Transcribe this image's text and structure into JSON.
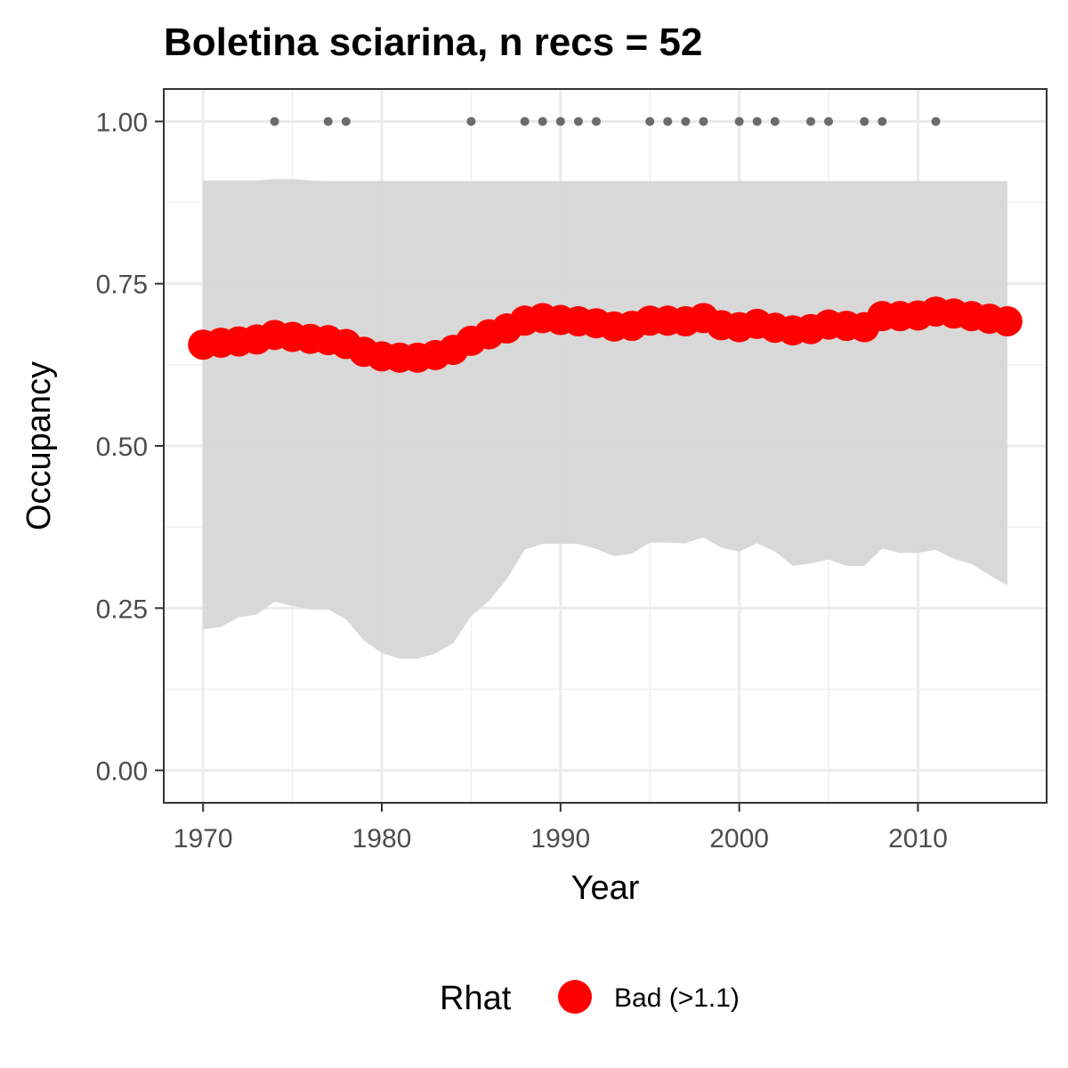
{
  "chart_data": {
    "type": "line",
    "title": "Boletina sciarina, n recs = 52",
    "xlabel": "Year",
    "ylabel": "Occupancy",
    "xlim": [
      1967.8,
      2017.2
    ],
    "ylim": [
      -0.05,
      1.05
    ],
    "x_ticks": [
      1970,
      1980,
      1990,
      2000,
      2010
    ],
    "y_ticks": [
      0.0,
      0.25,
      0.5,
      0.75,
      1.0
    ],
    "y_tick_labels": [
      "0.00",
      "0.25",
      "0.50",
      "0.75",
      "1.00"
    ],
    "grid": true,
    "legend": {
      "title": "Rhat",
      "position": "bottom",
      "entries": [
        {
          "label": "Bad (>1.1)",
          "color": "#ff0000"
        }
      ]
    },
    "colors": {
      "mean": "#ff0000",
      "ribbon": "#d6d6d6",
      "records": "#6b6b6b"
    },
    "x": [
      1970,
      1971,
      1972,
      1973,
      1974,
      1975,
      1976,
      1977,
      1978,
      1979,
      1980,
      1981,
      1982,
      1983,
      1984,
      1985,
      1986,
      1987,
      1988,
      1989,
      1990,
      1991,
      1992,
      1993,
      1994,
      1995,
      1996,
      1997,
      1998,
      1999,
      2000,
      2001,
      2002,
      2003,
      2004,
      2005,
      2006,
      2007,
      2008,
      2009,
      2010,
      2011,
      2012,
      2013,
      2014,
      2015
    ],
    "series": [
      {
        "name": "Bad (>1.1)",
        "values": [
          0.656,
          0.659,
          0.661,
          0.664,
          0.671,
          0.668,
          0.665,
          0.663,
          0.657,
          0.645,
          0.638,
          0.636,
          0.636,
          0.64,
          0.648,
          0.662,
          0.672,
          0.681,
          0.693,
          0.697,
          0.694,
          0.692,
          0.689,
          0.684,
          0.685,
          0.693,
          0.693,
          0.692,
          0.697,
          0.686,
          0.683,
          0.688,
          0.682,
          0.678,
          0.68,
          0.687,
          0.685,
          0.683,
          0.7,
          0.7,
          0.701,
          0.707,
          0.704,
          0.7,
          0.696,
          0.692
        ]
      }
    ],
    "ribbon_upper": [
      0.909,
      0.909,
      0.909,
      0.909,
      0.911,
      0.911,
      0.909,
      0.908,
      0.908,
      0.908,
      0.908,
      0.908,
      0.908,
      0.908,
      0.908,
      0.908,
      0.908,
      0.908,
      0.908,
      0.908,
      0.908,
      0.908,
      0.908,
      0.908,
      0.908,
      0.908,
      0.908,
      0.908,
      0.908,
      0.908,
      0.908,
      0.908,
      0.908,
      0.908,
      0.908,
      0.908,
      0.908,
      0.908,
      0.908,
      0.908,
      0.908,
      0.908,
      0.908,
      0.908,
      0.908,
      0.908
    ],
    "ribbon_lower": [
      0.217,
      0.221,
      0.236,
      0.24,
      0.26,
      0.253,
      0.248,
      0.248,
      0.233,
      0.2,
      0.181,
      0.172,
      0.172,
      0.18,
      0.196,
      0.238,
      0.261,
      0.295,
      0.34,
      0.349,
      0.349,
      0.349,
      0.341,
      0.33,
      0.334,
      0.351,
      0.351,
      0.35,
      0.359,
      0.343,
      0.337,
      0.35,
      0.337,
      0.315,
      0.319,
      0.325,
      0.315,
      0.315,
      0.342,
      0.335,
      0.335,
      0.34,
      0.326,
      0.318,
      0.301,
      0.285
    ],
    "record_years": [
      1974,
      1977,
      1978,
      1985,
      1988,
      1989,
      1990,
      1991,
      1992,
      1995,
      1996,
      1997,
      1998,
      2000,
      2001,
      2002,
      2004,
      2005,
      2007,
      2008,
      2011
    ],
    "record_value": 1.0
  }
}
